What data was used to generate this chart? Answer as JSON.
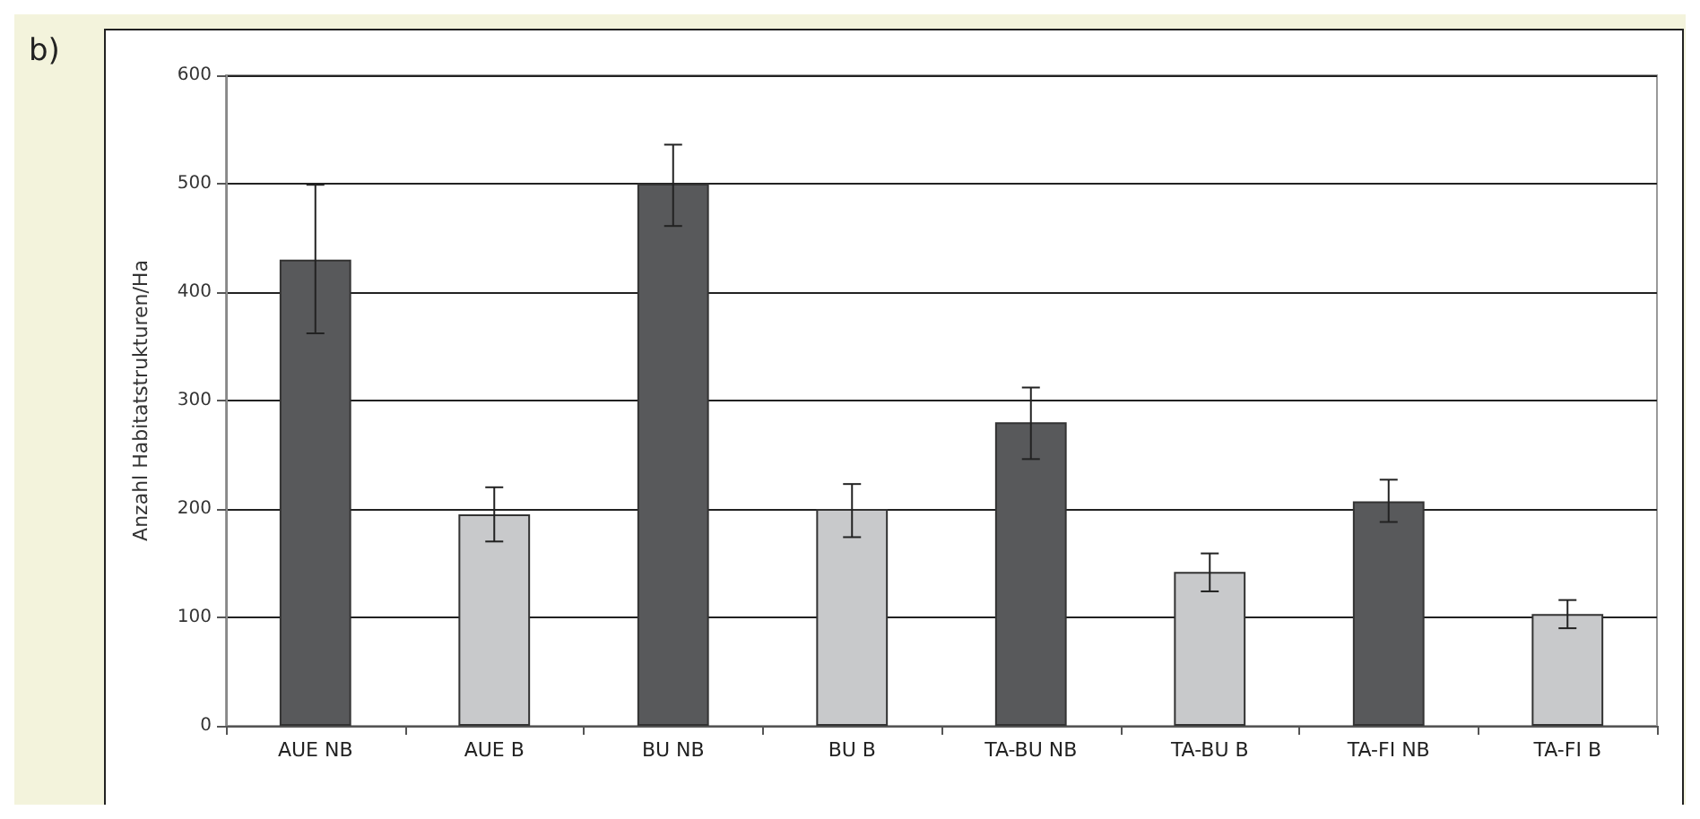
{
  "chart_data": {
    "type": "bar",
    "ylabel": "Anzahl Habitatstrukturen/Ha",
    "annotations": [
      "b)"
    ],
    "categories": [
      "AUE NB",
      "AUE B",
      "BU NB",
      "BU B",
      "TA-BU NB",
      "TA-BU B",
      "TA-FI NB",
      "TA-FI B"
    ],
    "values": [
      430,
      195,
      500,
      200,
      280,
      142,
      207,
      103
    ],
    "colors": [
      "#58595b",
      "#c8c9cb",
      "#58595b",
      "#c8c9cb",
      "#58595b",
      "#c8c9cb",
      "#58595b",
      "#c8c9cb"
    ],
    "errors": [
      [
        362,
        499
      ],
      [
        170,
        220
      ],
      [
        461,
        536
      ],
      [
        174,
        223
      ],
      [
        246,
        312
      ],
      [
        124,
        159
      ],
      [
        188,
        227
      ],
      [
        90,
        116
      ]
    ],
    "ylim": [
      0,
      600
    ],
    "yticks": [
      0,
      100,
      200,
      300,
      400,
      500,
      600
    ],
    "grid": "y"
  }
}
